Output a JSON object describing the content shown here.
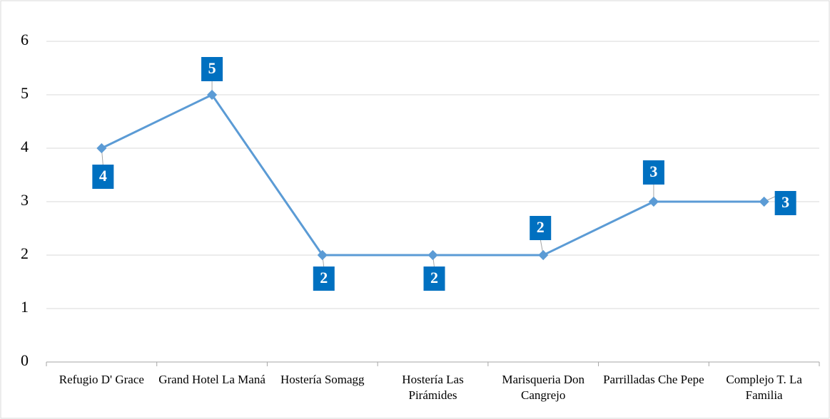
{
  "chart_data": {
    "type": "line",
    "categories": [
      "Refugio D' Grace",
      "Grand Hotel La Maná",
      "Hostería Somagg",
      "Hostería Las Pirámides",
      "Marisqueria Don Cangrejo",
      "Parrilladas Che Pepe",
      "Complejo T. La Familia"
    ],
    "values": [
      4,
      5,
      2,
      2,
      2,
      3,
      3
    ],
    "color": "#5b9bd5",
    "label_color": "#0070c0",
    "ylim": [
      0,
      6
    ],
    "yticks": [
      0,
      1,
      2,
      3,
      4,
      5,
      6
    ],
    "grid": true
  }
}
